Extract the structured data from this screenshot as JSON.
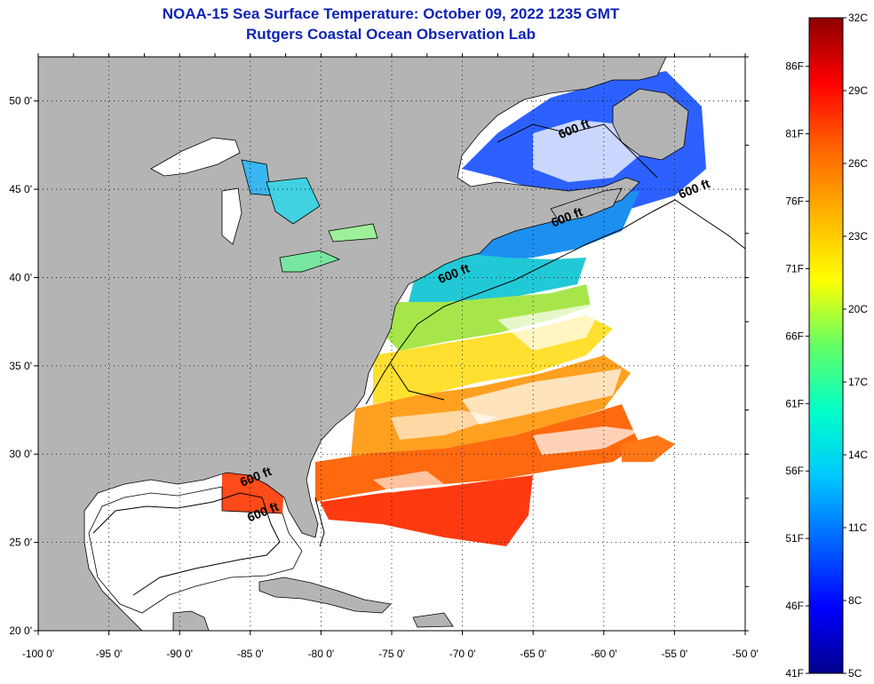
{
  "title": "NOAA-15 Sea Surface Temperature:  October 09, 2022 1235 GMT",
  "subtitle": "Rutgers Coastal Ocean Observation Lab",
  "map": {
    "lon_range": [
      -100,
      -50
    ],
    "lat_range": [
      20,
      52.5
    ],
    "lon_ticks": [
      {
        "value": -100,
        "label": "-100 0'"
      },
      {
        "value": -95,
        "label": "-95 0'"
      },
      {
        "value": -90,
        "label": "-90 0'"
      },
      {
        "value": -85,
        "label": "-85 0'"
      },
      {
        "value": -80,
        "label": "-80 0'"
      },
      {
        "value": -75,
        "label": "-75 0'"
      },
      {
        "value": -70,
        "label": "-70 0'"
      },
      {
        "value": -65,
        "label": "-65 0'"
      },
      {
        "value": -60,
        "label": "-60 0'"
      },
      {
        "value": -55,
        "label": "-55 0'"
      },
      {
        "value": -50,
        "label": "-50 0'"
      }
    ],
    "lat_ticks": [
      {
        "value": 50,
        "label": "50 0'"
      },
      {
        "value": 45,
        "label": "45 0'"
      },
      {
        "value": 40,
        "label": "40 0'"
      },
      {
        "value": 35,
        "label": "35 0'"
      },
      {
        "value": 30,
        "label": "30 0'"
      },
      {
        "value": 25,
        "label": "25 0'"
      },
      {
        "value": 20,
        "label": "20 0'"
      }
    ],
    "grid": "dotted",
    "land_color": "#b4b4b4",
    "contour_labels": [
      {
        "text": "600 ft",
        "lon": -62.0,
        "lat": 48.2
      },
      {
        "text": "600 ft",
        "lon": -53.5,
        "lat": 44.8
      },
      {
        "text": "600 ft",
        "lon": -62.5,
        "lat": 43.2
      },
      {
        "text": "600 ft",
        "lon": -70.5,
        "lat": 40.0
      },
      {
        "text": "600 ft",
        "lon": -84.5,
        "lat": 28.5
      },
      {
        "text": "600 ft",
        "lon": -84.0,
        "lat": 26.5
      }
    ]
  },
  "colorbar": {
    "scale_c": [
      5,
      32
    ],
    "celsius_labels": [
      {
        "value": 32,
        "label": "32C"
      },
      {
        "value": 29,
        "label": "29C"
      },
      {
        "value": 26,
        "label": "26C"
      },
      {
        "value": 23,
        "label": "23C"
      },
      {
        "value": 20,
        "label": "20C"
      },
      {
        "value": 17,
        "label": "17C"
      },
      {
        "value": 14,
        "label": "14C"
      },
      {
        "value": 11,
        "label": "11C"
      },
      {
        "value": 8,
        "label": "8C"
      },
      {
        "value": 5,
        "label": "5C"
      }
    ],
    "fahrenheit_labels": [
      {
        "value": 86,
        "label": "86F"
      },
      {
        "value": 81,
        "label": "81F"
      },
      {
        "value": 76,
        "label": "76F"
      },
      {
        "value": 71,
        "label": "71F"
      },
      {
        "value": 66,
        "label": "66F"
      },
      {
        "value": 61,
        "label": "61F"
      },
      {
        "value": 56,
        "label": "56F"
      },
      {
        "value": 51,
        "label": "51F"
      },
      {
        "value": 46,
        "label": "46F"
      },
      {
        "value": 41,
        "label": "41F"
      }
    ],
    "colors": [
      "#00008c",
      "#0000ff",
      "#0064ff",
      "#00c8ff",
      "#00ffc8",
      "#64ff64",
      "#ffff00",
      "#ffb400",
      "#ff6400",
      "#ff0000",
      "#8c0000"
    ]
  }
}
